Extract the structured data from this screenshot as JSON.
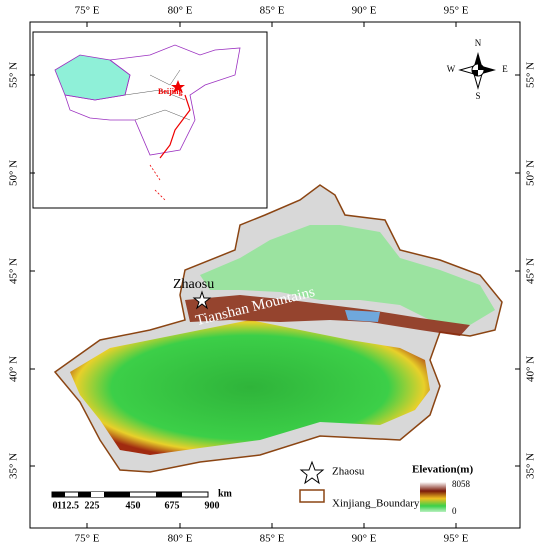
{
  "longitude_labels": [
    "75° E",
    "80° E",
    "85° E",
    "90° E",
    "95° E"
  ],
  "latitude_labels": [
    "55° N",
    "50° N",
    "45° N",
    "40° N",
    "35° N"
  ],
  "compass": {
    "north": "N",
    "south": "S",
    "west": "W",
    "east": "E"
  },
  "inset": {
    "capital": "Beijing"
  },
  "map_labels": {
    "site": "Zhaosu",
    "mountains": "Tianshan Mountains"
  },
  "legend": {
    "site": "Zhaosu",
    "boundary": "Xinjiang_Boundary",
    "elevation_title": "Elevation(m)",
    "elevation_max": "8058",
    "elevation_min": "0"
  },
  "scale_bar": {
    "labels": [
      "0",
      "112.5",
      "225",
      "450",
      "675",
      "900"
    ],
    "unit": "km"
  }
}
